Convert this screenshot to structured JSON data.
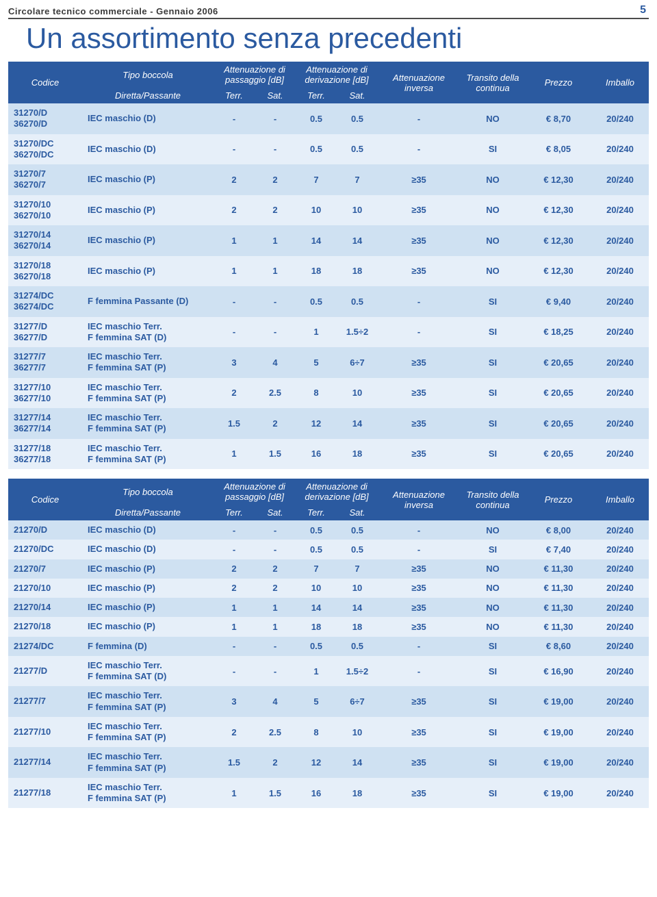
{
  "header": {
    "title": "Circolare tecnico commerciale - Gennaio 2006",
    "page_number": "5"
  },
  "main_title": "Un assortimento senza precedenti",
  "table_headers": {
    "codice": "Codice",
    "tipo": "Tipo boccola",
    "tipo_sub": "Diretta/Passante",
    "att_pass": "Attenuazione di passaggio [dB]",
    "att_deriv": "Attenuazione di derivazione [dB]",
    "terr": "Terr.",
    "sat": "Sat.",
    "att_inv": "Attenuazione inversa",
    "transito": "Transito della continua",
    "prezzo": "Prezzo",
    "imballo": "Imballo"
  },
  "colors": {
    "header_bg": "#2b5aa0",
    "band_a": "#cfe1f2",
    "band_b": "#e6eff9",
    "text_blue": "#2b5aa0"
  },
  "table1": [
    {
      "code": "31270/D\n36270/D",
      "tipo": "IEC maschio (D)",
      "p_terr": "-",
      "p_sat": "-",
      "d_terr": "0.5",
      "d_sat": "0.5",
      "inv": "-",
      "trans": "NO",
      "prezzo": "€   8,70",
      "imb": "20/240"
    },
    {
      "code": "31270/DC\n36270/DC",
      "tipo": "IEC maschio (D)",
      "p_terr": "-",
      "p_sat": "-",
      "d_terr": "0.5",
      "d_sat": "0.5",
      "inv": "-",
      "trans": "SI",
      "prezzo": "€   8,05",
      "imb": "20/240"
    },
    {
      "code": "31270/7\n36270/7",
      "tipo": "IEC maschio (P)",
      "p_terr": "2",
      "p_sat": "2",
      "d_terr": "7",
      "d_sat": "7",
      "inv": "≥35",
      "trans": "NO",
      "prezzo": "€ 12,30",
      "imb": "20/240"
    },
    {
      "code": "31270/10\n36270/10",
      "tipo": "IEC maschio (P)",
      "p_terr": "2",
      "p_sat": "2",
      "d_terr": "10",
      "d_sat": "10",
      "inv": "≥35",
      "trans": "NO",
      "prezzo": "€ 12,30",
      "imb": "20/240"
    },
    {
      "code": "31270/14\n36270/14",
      "tipo": "IEC maschio (P)",
      "p_terr": "1",
      "p_sat": "1",
      "d_terr": "14",
      "d_sat": "14",
      "inv": "≥35",
      "trans": "NO",
      "prezzo": "€ 12,30",
      "imb": "20/240"
    },
    {
      "code": "31270/18\n36270/18",
      "tipo": "IEC maschio (P)",
      "p_terr": "1",
      "p_sat": "1",
      "d_terr": "18",
      "d_sat": "18",
      "inv": "≥35",
      "trans": "NO",
      "prezzo": "€ 12,30",
      "imb": "20/240"
    },
    {
      "code": "31274/DC\n36274/DC",
      "tipo": "F femmina Passante (D)",
      "p_terr": "-",
      "p_sat": "-",
      "d_terr": "0.5",
      "d_sat": "0.5",
      "inv": "-",
      "trans": "SI",
      "prezzo": "€   9,40",
      "imb": "20/240"
    },
    {
      "code": "31277/D\n36277/D",
      "tipo": "IEC maschio Terr.\nF femmina SAT (D)",
      "p_terr": "-",
      "p_sat": "-",
      "d_terr": "1",
      "d_sat": "1.5÷2",
      "inv": "-",
      "trans": "SI",
      "prezzo": "€ 18,25",
      "imb": "20/240"
    },
    {
      "code": "31277/7\n36277/7",
      "tipo": "IEC maschio Terr.\nF femmina SAT (P)",
      "p_terr": "3",
      "p_sat": "4",
      "d_terr": "5",
      "d_sat": "6÷7",
      "inv": "≥35",
      "trans": "SI",
      "prezzo": "€ 20,65",
      "imb": "20/240"
    },
    {
      "code": "31277/10\n36277/10",
      "tipo": "IEC maschio Terr.\nF femmina SAT (P)",
      "p_terr": "2",
      "p_sat": "2.5",
      "d_terr": "8",
      "d_sat": "10",
      "inv": "≥35",
      "trans": "SI",
      "prezzo": "€ 20,65",
      "imb": "20/240"
    },
    {
      "code": "31277/14\n36277/14",
      "tipo": "IEC maschio Terr.\nF femmina SAT (P)",
      "p_terr": "1.5",
      "p_sat": "2",
      "d_terr": "12",
      "d_sat": "14",
      "inv": "≥35",
      "trans": "SI",
      "prezzo": "€ 20,65",
      "imb": "20/240"
    },
    {
      "code": "31277/18\n36277/18",
      "tipo": "IEC maschio Terr.\nF femmina SAT (P)",
      "p_terr": "1",
      "p_sat": "1.5",
      "d_terr": "16",
      "d_sat": "18",
      "inv": "≥35",
      "trans": "SI",
      "prezzo": "€ 20,65",
      "imb": "20/240"
    }
  ],
  "table2": [
    {
      "code": "21270/D",
      "tipo": "IEC maschio (D)",
      "p_terr": "-",
      "p_sat": "-",
      "d_terr": "0.5",
      "d_sat": "0.5",
      "inv": "-",
      "trans": "NO",
      "prezzo": "€   8,00",
      "imb": "20/240"
    },
    {
      "code": "21270/DC",
      "tipo": "IEC maschio (D)",
      "p_terr": "-",
      "p_sat": "-",
      "d_terr": "0.5",
      "d_sat": "0.5",
      "inv": "-",
      "trans": "SI",
      "prezzo": "€   7,40",
      "imb": "20/240"
    },
    {
      "code": "21270/7",
      "tipo": "IEC maschio (P)",
      "p_terr": "2",
      "p_sat": "2",
      "d_terr": "7",
      "d_sat": "7",
      "inv": "≥35",
      "trans": "NO",
      "prezzo": "€ 11,30",
      "imb": "20/240"
    },
    {
      "code": "21270/10",
      "tipo": "IEC maschio (P)",
      "p_terr": "2",
      "p_sat": "2",
      "d_terr": "10",
      "d_sat": "10",
      "inv": "≥35",
      "trans": "NO",
      "prezzo": "€ 11,30",
      "imb": "20/240"
    },
    {
      "code": "21270/14",
      "tipo": "IEC maschio (P)",
      "p_terr": "1",
      "p_sat": "1",
      "d_terr": "14",
      "d_sat": "14",
      "inv": "≥35",
      "trans": "NO",
      "prezzo": "€ 11,30",
      "imb": "20/240"
    },
    {
      "code": "21270/18",
      "tipo": "IEC maschio (P)",
      "p_terr": "1",
      "p_sat": "1",
      "d_terr": "18",
      "d_sat": "18",
      "inv": "≥35",
      "trans": "NO",
      "prezzo": "€ 11,30",
      "imb": "20/240"
    },
    {
      "code": "21274/DC",
      "tipo": "F femmina (D)",
      "p_terr": "-",
      "p_sat": "-",
      "d_terr": "0.5",
      "d_sat": "0.5",
      "inv": "-",
      "trans": "SI",
      "prezzo": "€   8,60",
      "imb": "20/240"
    },
    {
      "code": "21277/D",
      "tipo": "IEC maschio Terr.\nF femmina SAT (D)",
      "p_terr": "-",
      "p_sat": "-",
      "d_terr": "1",
      "d_sat": "1.5÷2",
      "inv": "-",
      "trans": "SI",
      "prezzo": "€ 16,90",
      "imb": "20/240"
    },
    {
      "code": "21277/7",
      "tipo": "IEC maschio Terr.\nF femmina SAT (P)",
      "p_terr": "3",
      "p_sat": "4",
      "d_terr": "5",
      "d_sat": "6÷7",
      "inv": "≥35",
      "trans": "SI",
      "prezzo": "€ 19,00",
      "imb": "20/240"
    },
    {
      "code": "21277/10",
      "tipo": "IEC maschio Terr.\nF femmina SAT (P)",
      "p_terr": "2",
      "p_sat": "2.5",
      "d_terr": "8",
      "d_sat": "10",
      "inv": "≥35",
      "trans": "SI",
      "prezzo": "€ 19,00",
      "imb": "20/240"
    },
    {
      "code": "21277/14",
      "tipo": "IEC maschio Terr.\nF femmina SAT (P)",
      "p_terr": "1.5",
      "p_sat": "2",
      "d_terr": "12",
      "d_sat": "14",
      "inv": "≥35",
      "trans": "SI",
      "prezzo": "€ 19,00",
      "imb": "20/240"
    },
    {
      "code": "21277/18",
      "tipo": "IEC maschio Terr.\nF femmina SAT (P)",
      "p_terr": "1",
      "p_sat": "1.5",
      "d_terr": "16",
      "d_sat": "18",
      "inv": "≥35",
      "trans": "SI",
      "prezzo": "€ 19,00",
      "imb": "20/240"
    }
  ]
}
